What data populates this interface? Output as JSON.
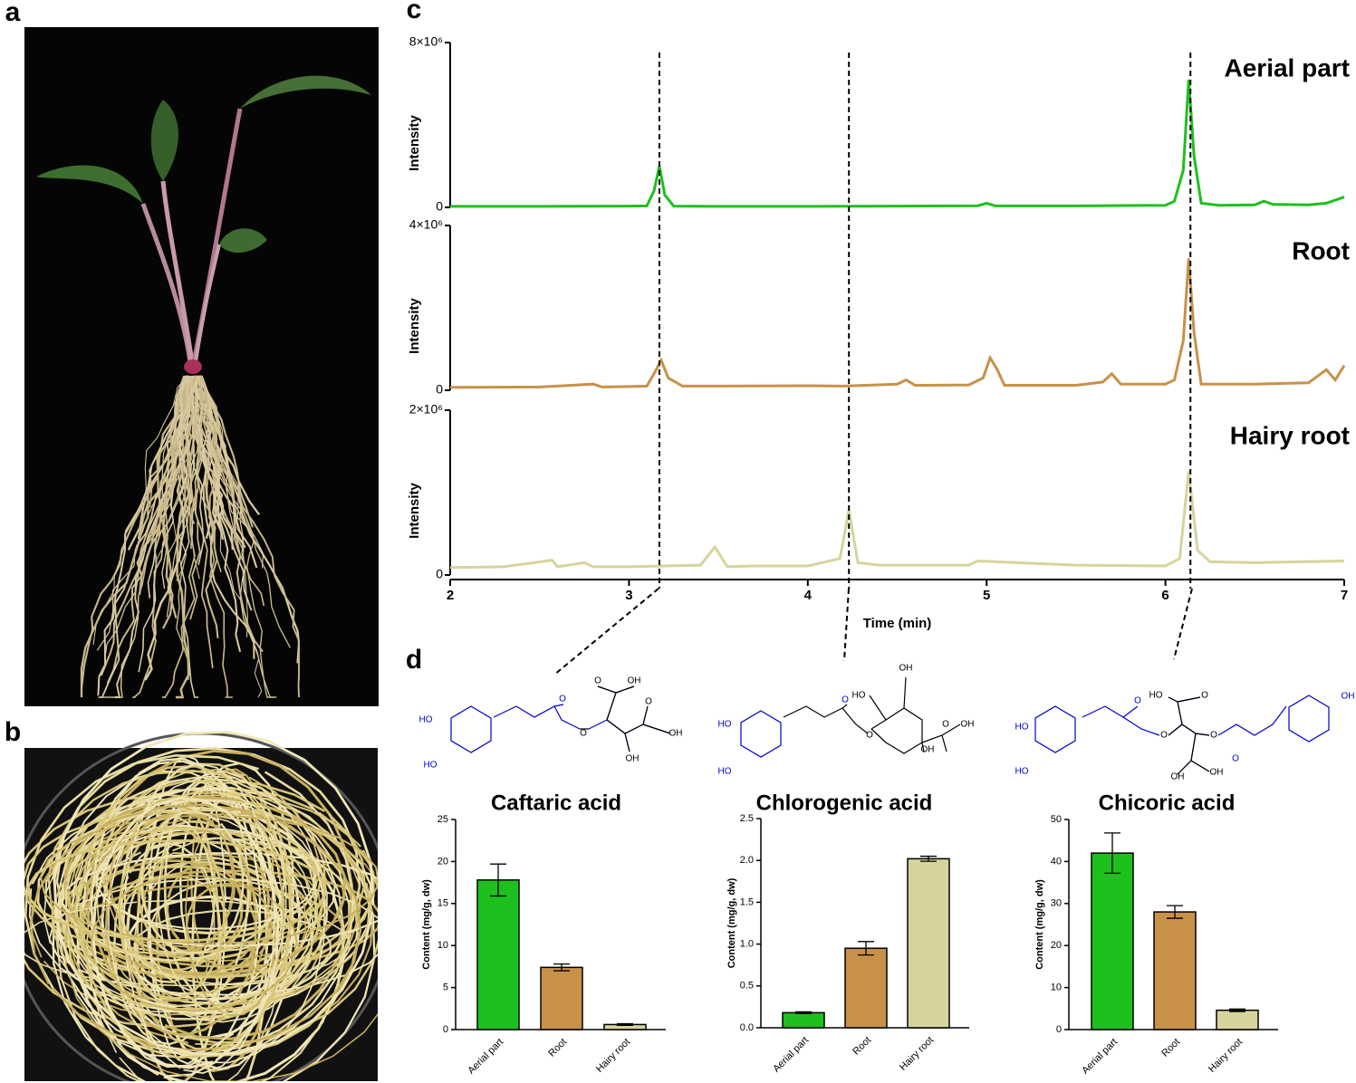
{
  "panel_labels": [
    "a",
    "b",
    "c",
    "d"
  ],
  "structures": [
    {
      "atoms": [
        "HO",
        "HO",
        "O",
        "OH",
        "O",
        "O",
        "O",
        "OH",
        "OH"
      ]
    },
    {
      "atoms": [
        "HO",
        "HO",
        "O",
        "OH",
        "HO",
        "O",
        "O",
        "OH",
        "OH"
      ]
    },
    {
      "atoms": [
        "HO",
        "HO",
        "O",
        "HO",
        "O",
        "O",
        "O",
        "O",
        "OH",
        "OH",
        "OH"
      ]
    }
  ],
  "chart_data": [
    {
      "type": "line",
      "title": "Aerial part",
      "y_label": "Intensity",
      "color": "#1ec01e",
      "xlim": [
        2,
        7
      ],
      "ylim": [
        0,
        8000000
      ],
      "yticks": [
        0,
        {
          "value": 8000000,
          "label": "8×10⁶"
        }
      ],
      "x": [
        2,
        2.5,
        3,
        3.1,
        3.14,
        3.17,
        3.2,
        3.25,
        3.5,
        4,
        4.5,
        4.95,
        5.0,
        5.05,
        5.5,
        6.0,
        6.05,
        6.1,
        6.13,
        6.16,
        6.2,
        6.3,
        6.5,
        6.55,
        6.6,
        6.8,
        6.9,
        7.0
      ],
      "values": [
        50000,
        50000,
        60000,
        70000,
        800000,
        2000000,
        600000,
        60000,
        50000,
        50000,
        60000,
        80000,
        200000,
        70000,
        70000,
        100000,
        300000,
        1800000,
        6200000,
        2500000,
        200000,
        100000,
        120000,
        300000,
        150000,
        120000,
        200000,
        500000
      ]
    },
    {
      "type": "line",
      "title": "Root",
      "y_label": "Intensity",
      "color": "#c8914a",
      "xlim": [
        2,
        7
      ],
      "ylim": [
        0,
        4000000
      ],
      "yticks": [
        0,
        {
          "value": 4000000,
          "label": "4×10⁶"
        }
      ],
      "x": [
        2,
        2.5,
        2.8,
        2.85,
        3,
        3.1,
        3.14,
        3.18,
        3.22,
        3.3,
        3.5,
        4,
        4.2,
        4.5,
        4.55,
        4.6,
        4.9,
        4.98,
        5.02,
        5.06,
        5.1,
        5.5,
        5.65,
        5.7,
        5.75,
        6.0,
        6.05,
        6.1,
        6.13,
        6.16,
        6.2,
        6.5,
        6.8,
        6.9,
        6.95,
        7.0
      ],
      "values": [
        70000,
        80000,
        150000,
        80000,
        90000,
        100000,
        400000,
        730000,
        300000,
        100000,
        100000,
        110000,
        100000,
        150000,
        250000,
        120000,
        130000,
        300000,
        790000,
        500000,
        120000,
        120000,
        200000,
        400000,
        150000,
        150000,
        250000,
        1200000,
        3200000,
        1400000,
        150000,
        150000,
        180000,
        500000,
        250000,
        600000
      ]
    },
    {
      "type": "line",
      "title": "Hairy root",
      "y_label": "Intensity",
      "x_label": "Time (min)",
      "color": "#d6d49c",
      "xlim": [
        2,
        7
      ],
      "ylim": [
        0,
        2000000
      ],
      "yticks": [
        0,
        {
          "value": 2000000,
          "label": "2×10⁶"
        }
      ],
      "xticks": [
        2,
        3,
        4,
        5,
        6,
        7
      ],
      "reference_lines": [
        3.17,
        4.23,
        6.14
      ],
      "x": [
        2,
        2.3,
        2.57,
        2.6,
        2.75,
        2.8,
        3,
        3.2,
        3.4,
        3.48,
        3.55,
        3.7,
        4,
        4.18,
        4.23,
        4.28,
        4.4,
        4.9,
        4.95,
        5.5,
        6.0,
        6.08,
        6.13,
        6.18,
        6.25,
        6.5,
        7.0
      ],
      "values": [
        90000,
        100000,
        180000,
        100000,
        150000,
        100000,
        100000,
        110000,
        120000,
        340000,
        100000,
        110000,
        110000,
        200000,
        790000,
        150000,
        120000,
        120000,
        170000,
        120000,
        110000,
        200000,
        1260000,
        300000,
        160000,
        150000,
        170000
      ]
    },
    {
      "type": "bar",
      "title": "Caftaric acid",
      "y_label": "Content (mg/g, dw)",
      "categories": [
        "Aerial part",
        "Root",
        "Hairy root"
      ],
      "values": [
        17.8,
        7.4,
        0.6
      ],
      "errors": [
        1.9,
        0.4,
        0.1
      ],
      "colors": [
        "#1ec01e",
        "#c8914a",
        "#d6d49c"
      ],
      "ylim": [
        0,
        25
      ],
      "yticks": [
        0,
        5,
        10,
        15,
        20,
        25
      ]
    },
    {
      "type": "bar",
      "title": "Chlorogenic acid",
      "y_label": "Content (mg/g, dw)",
      "categories": [
        "Aerial part",
        "Root",
        "Hairy root"
      ],
      "values": [
        0.18,
        0.95,
        2.02
      ],
      "errors": [
        0.01,
        0.08,
        0.03
      ],
      "colors": [
        "#1ec01e",
        "#c8914a",
        "#d6d49c"
      ],
      "ylim": [
        0,
        2.5
      ],
      "yticks": [
        {
          "value": 0,
          "label": "0.0"
        },
        0.5,
        {
          "value": 1,
          "label": "1.0"
        },
        1.5,
        {
          "value": 2,
          "label": "2.0"
        },
        2.5
      ]
    },
    {
      "type": "bar",
      "title": "Chicoric acid",
      "y_label": "Content (mg/g, dw)",
      "categories": [
        "Aerial part",
        "Root",
        "Hairy root"
      ],
      "values": [
        42,
        28,
        4.6
      ],
      "errors": [
        4.8,
        1.5,
        0.3
      ],
      "colors": [
        "#1ec01e",
        "#c8914a",
        "#d6d49c"
      ],
      "ylim": [
        0,
        50
      ],
      "yticks": [
        0,
        10,
        20,
        30,
        40,
        50
      ]
    }
  ]
}
